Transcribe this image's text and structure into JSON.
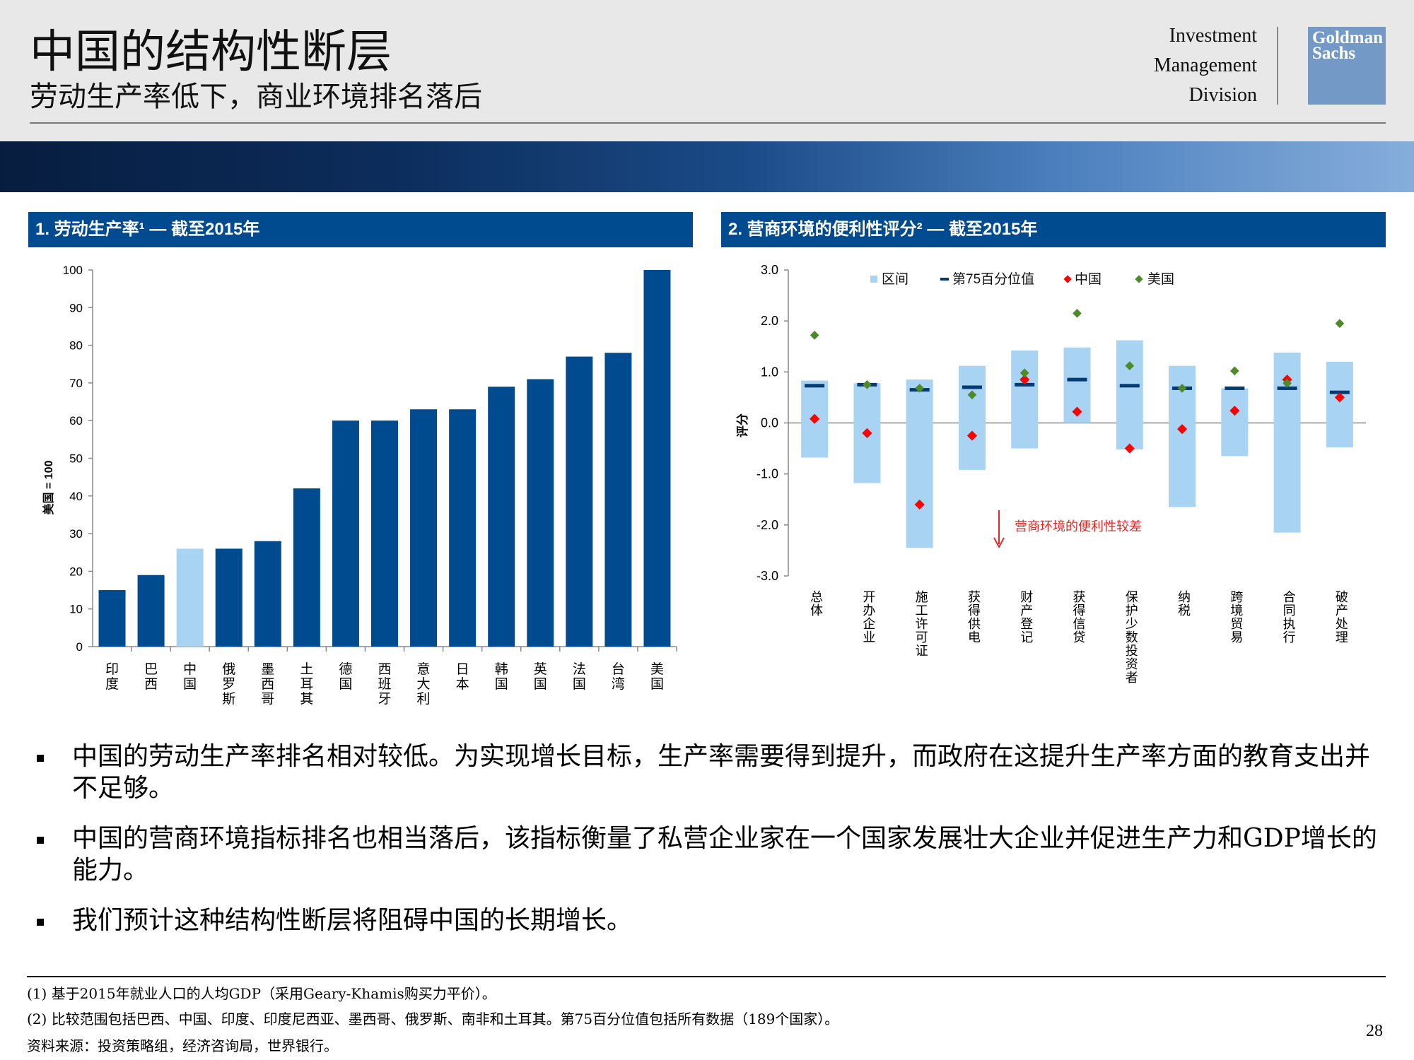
{
  "header": {
    "title": "中国的结构性断层",
    "subtitle": "劳动生产率低下，商业环境排名落后",
    "division_lines": [
      "Investment",
      "Management",
      "Division"
    ],
    "logo_lines": [
      "Goldman",
      "Sachs"
    ]
  },
  "colors": {
    "dark_blue": "#004a8f",
    "light_blue": "#a9d3f2",
    "china_red": "#ff0000",
    "us_green": "#4e8a2a",
    "p75_navy": "#063a72"
  },
  "panel1": {
    "heading": "1. 劳动生产率¹ — 截至2015年"
  },
  "panel2": {
    "heading": "2. 营商环境的便利性评分² — 截至2015年"
  },
  "chart_data": [
    {
      "type": "bar",
      "title": "1. 劳动生产率¹ — 截至2015年",
      "ylabel": "美国 = 100",
      "ylim": [
        0,
        100
      ],
      "yticks": [
        "0",
        "10",
        "20",
        "30",
        "40",
        "50",
        "60",
        "70",
        "80",
        "90",
        "100"
      ],
      "categories": [
        "印度",
        "巴西",
        "中国",
        "俄罗斯",
        "墨西哥",
        "土耳其",
        "德国",
        "西班牙",
        "意大利",
        "日本",
        "韩国",
        "英国",
        "法国",
        "台湾",
        "美国"
      ],
      "values": [
        15,
        19,
        26,
        26,
        28,
        42,
        60,
        60,
        63,
        63,
        69,
        71,
        77,
        78,
        100
      ],
      "highlight": "中国",
      "grid": false
    },
    {
      "type": "range_marker",
      "title": "2. 营商环境的便利性评分² — 截至2015年",
      "ylabel": "评分",
      "ylim": [
        -3,
        3
      ],
      "yticks": [
        "-3.0",
        "-2.0",
        "-1.0",
        "0.0",
        "1.0",
        "2.0",
        "3.0"
      ],
      "legend": [
        "区间",
        "第75百分位值",
        "中国",
        "美国"
      ],
      "legend_position": "top",
      "annotation": "营商环境的便利性较差",
      "categories": [
        "总体",
        "开办企业",
        "施工许可证",
        "获得供电",
        "财产登记",
        "获得信贷",
        "保护少数投资者",
        "纳税",
        "跨境贸易",
        "合同执行",
        "破产处理"
      ],
      "range_low": [
        -0.68,
        -1.18,
        -2.45,
        -0.92,
        -0.5,
        0.0,
        -0.52,
        -1.65,
        -0.65,
        -2.15,
        -0.48
      ],
      "range_high": [
        0.83,
        0.78,
        0.85,
        1.12,
        1.42,
        1.48,
        1.62,
        1.12,
        0.68,
        1.38,
        1.2
      ],
      "p75": [
        0.73,
        0.75,
        0.65,
        0.7,
        0.75,
        0.85,
        0.73,
        0.68,
        0.68,
        0.68,
        0.6
      ],
      "china": [
        0.08,
        -0.2,
        -1.6,
        -0.25,
        0.85,
        0.22,
        -0.5,
        -0.12,
        0.24,
        0.85,
        0.5
      ],
      "usa": [
        1.72,
        0.75,
        0.68,
        0.55,
        0.98,
        2.15,
        1.12,
        0.68,
        1.02,
        0.78,
        1.95
      ]
    }
  ],
  "bullets": [
    "中国的劳动生产率排名相对较低。为实现增长目标，生产率需要得到提升，而政府在这提升生产率方面的教育支出并不足够。",
    "中国的营商环境指标排名也相当落后，该指标衡量了私营企业家在一个国家发展壮大企业并促进生产力和GDP增长的能力。",
    "我们预计这种结构性断层将阻碍中国的长期增长。"
  ],
  "footnotes": {
    "note1": "(1) 基于2015年就业人口的人均GDP（采用Geary-Khamis购买力平价）。",
    "note2": "(2) 比较范围包括巴西、中国、印度、印度尼西亚、墨西哥、俄罗斯、南非和土耳其。第75百分位值包括所有数据（189个国家）。",
    "source": "资料来源：投资策略组，经济咨询局，世界银行。"
  },
  "page_number": "28"
}
